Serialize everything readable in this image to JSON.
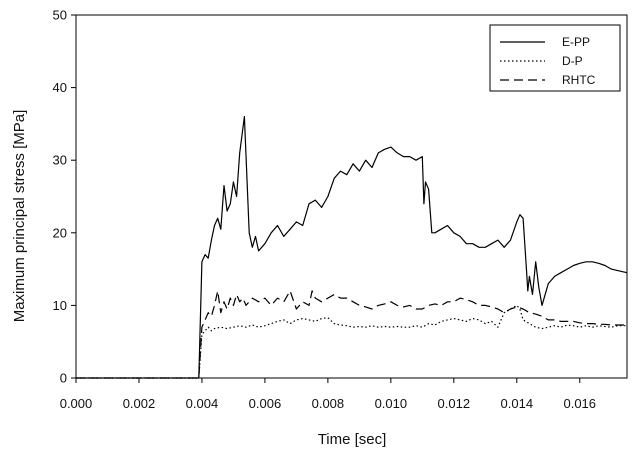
{
  "chart_data": {
    "type": "line",
    "title": "",
    "xlabel": "Time [sec]",
    "ylabel": "Maximum principal stress [MPa]",
    "xlim": [
      0.0,
      0.0175
    ],
    "ylim": [
      0,
      50
    ],
    "xticks": [
      "0.000",
      "0.002",
      "0.004",
      "0.006",
      "0.008",
      "0.010",
      "0.012",
      "0.014",
      "0.016"
    ],
    "yticks": [
      "0",
      "10",
      "20",
      "30",
      "40",
      "50"
    ],
    "grid": false,
    "legend_position": "top-right",
    "series": [
      {
        "name": "E-PP",
        "style": "solid",
        "x": [
          0.0,
          0.0039,
          0.004,
          0.0041,
          0.0042,
          0.0043,
          0.0044,
          0.0045,
          0.0046,
          0.0047,
          0.0048,
          0.0049,
          0.005,
          0.0051,
          0.0052,
          0.00535,
          0.0055,
          0.0056,
          0.0057,
          0.0058,
          0.006,
          0.0062,
          0.0064,
          0.0066,
          0.0068,
          0.007,
          0.0072,
          0.0074,
          0.0076,
          0.0078,
          0.008,
          0.0082,
          0.0084,
          0.0086,
          0.0088,
          0.009,
          0.0092,
          0.0094,
          0.0096,
          0.0098,
          0.01,
          0.0102,
          0.0104,
          0.0106,
          0.0108,
          0.011,
          0.01105,
          0.0111,
          0.0112,
          0.0113,
          0.0114,
          0.0116,
          0.0118,
          0.012,
          0.0122,
          0.0124,
          0.0126,
          0.0128,
          0.013,
          0.0132,
          0.0134,
          0.0136,
          0.0138,
          0.014,
          0.0141,
          0.0142,
          0.0143,
          0.01435,
          0.0144,
          0.0145,
          0.0146,
          0.0147,
          0.0148,
          0.015,
          0.0152,
          0.0154,
          0.0156,
          0.0158,
          0.016,
          0.0162,
          0.0164,
          0.0166,
          0.0168,
          0.017,
          0.0172,
          0.0175
        ],
        "y": [
          0.0,
          0.0,
          16.0,
          17.0,
          16.5,
          19.0,
          21.0,
          22.0,
          20.5,
          26.5,
          23.0,
          24.0,
          27.0,
          25.0,
          31.0,
          36.0,
          20.0,
          18.0,
          19.5,
          17.5,
          18.5,
          20.0,
          21.0,
          19.5,
          20.5,
          21.5,
          21.0,
          24.0,
          24.5,
          23.5,
          25.0,
          27.5,
          28.5,
          28.0,
          29.5,
          28.5,
          30.0,
          29.0,
          31.0,
          31.5,
          31.8,
          31.0,
          30.5,
          30.5,
          30.0,
          30.5,
          24.0,
          27.0,
          26.0,
          20.0,
          20.0,
          20.5,
          21.0,
          20.0,
          19.5,
          18.5,
          18.5,
          18.0,
          18.0,
          18.5,
          19.0,
          18.0,
          19.0,
          21.5,
          22.5,
          22.0,
          15.5,
          12.0,
          14.0,
          11.5,
          16.0,
          12.5,
          10.0,
          13.0,
          14.0,
          14.5,
          15.0,
          15.5,
          15.8,
          16.0,
          16.0,
          15.8,
          15.5,
          15.0,
          14.8,
          14.5
        ]
      },
      {
        "name": "D-P",
        "style": "dotted",
        "x": [
          0.0,
          0.0039,
          0.004,
          0.0041,
          0.0042,
          0.0043,
          0.0044,
          0.0046,
          0.0048,
          0.005,
          0.0052,
          0.0054,
          0.0056,
          0.0058,
          0.006,
          0.0062,
          0.0064,
          0.0066,
          0.0068,
          0.007,
          0.0072,
          0.0074,
          0.0076,
          0.0078,
          0.008,
          0.0082,
          0.0084,
          0.0086,
          0.0088,
          0.009,
          0.0092,
          0.0094,
          0.0096,
          0.0098,
          0.01,
          0.0102,
          0.0104,
          0.0106,
          0.0108,
          0.011,
          0.0112,
          0.0114,
          0.0116,
          0.0118,
          0.012,
          0.0122,
          0.0124,
          0.0126,
          0.0128,
          0.013,
          0.0132,
          0.0134,
          0.0136,
          0.0138,
          0.014,
          0.0141,
          0.0142,
          0.0144,
          0.0146,
          0.0148,
          0.015,
          0.0152,
          0.0154,
          0.0156,
          0.0158,
          0.016,
          0.0162,
          0.0164,
          0.0166,
          0.0168,
          0.017,
          0.0172,
          0.0175
        ],
        "y": [
          0.0,
          0.0,
          6.0,
          6.5,
          7.0,
          6.5,
          6.8,
          7.0,
          6.8,
          7.0,
          7.2,
          7.0,
          7.3,
          7.0,
          7.2,
          7.5,
          7.8,
          8.0,
          7.5,
          8.0,
          8.2,
          8.0,
          7.8,
          8.2,
          8.3,
          7.5,
          7.3,
          7.2,
          7.0,
          7.1,
          7.0,
          7.2,
          7.0,
          7.1,
          7.0,
          7.1,
          7.0,
          7.0,
          7.2,
          7.0,
          7.5,
          7.3,
          7.8,
          8.0,
          8.2,
          8.0,
          7.8,
          8.2,
          8.0,
          7.5,
          7.8,
          7.0,
          9.0,
          9.5,
          10.0,
          9.5,
          8.0,
          7.5,
          7.0,
          6.8,
          7.0,
          7.2,
          7.0,
          7.3,
          7.2,
          7.0,
          7.2,
          7.0,
          7.2,
          7.1,
          7.0,
          7.2,
          7.2
        ]
      },
      {
        "name": "RHTC",
        "style": "dashed",
        "x": [
          0.0,
          0.0039,
          0.004,
          0.0041,
          0.0042,
          0.0043,
          0.0044,
          0.0045,
          0.0046,
          0.0047,
          0.0048,
          0.0049,
          0.005,
          0.0051,
          0.0052,
          0.0053,
          0.0054,
          0.0056,
          0.0058,
          0.006,
          0.0062,
          0.0064,
          0.0066,
          0.0068,
          0.007,
          0.0072,
          0.0074,
          0.0075,
          0.0076,
          0.0078,
          0.008,
          0.0082,
          0.0084,
          0.0086,
          0.0088,
          0.009,
          0.0092,
          0.0094,
          0.0096,
          0.0098,
          0.01,
          0.0102,
          0.0104,
          0.0106,
          0.0108,
          0.011,
          0.0112,
          0.0114,
          0.0116,
          0.0118,
          0.012,
          0.0122,
          0.0124,
          0.0126,
          0.0128,
          0.013,
          0.0132,
          0.0134,
          0.0136,
          0.0138,
          0.014,
          0.0142,
          0.0144,
          0.0146,
          0.0148,
          0.015,
          0.0152,
          0.0154,
          0.0156,
          0.0158,
          0.016,
          0.0162,
          0.0164,
          0.0166,
          0.0168,
          0.017,
          0.0172,
          0.0175
        ],
        "y": [
          0.0,
          0.0,
          7.0,
          8.0,
          9.0,
          8.5,
          10.0,
          12.0,
          9.0,
          10.5,
          9.5,
          11.0,
          10.0,
          11.5,
          10.5,
          11.0,
          10.0,
          11.0,
          10.5,
          11.0,
          10.0,
          11.0,
          10.5,
          12.0,
          9.5,
          10.5,
          10.0,
          12.0,
          11.0,
          10.5,
          11.0,
          11.5,
          11.0,
          11.0,
          10.5,
          10.0,
          9.8,
          9.5,
          10.0,
          10.2,
          10.5,
          10.0,
          9.8,
          10.0,
          9.5,
          9.5,
          10.0,
          10.2,
          10.0,
          10.5,
          10.5,
          11.0,
          10.8,
          10.5,
          10.0,
          10.0,
          9.8,
          9.5,
          9.0,
          9.5,
          9.8,
          9.5,
          9.0,
          8.8,
          8.5,
          8.0,
          8.0,
          7.8,
          7.8,
          7.8,
          7.6,
          7.5,
          7.5,
          7.4,
          7.4,
          7.3,
          7.3,
          7.3
        ]
      }
    ]
  }
}
